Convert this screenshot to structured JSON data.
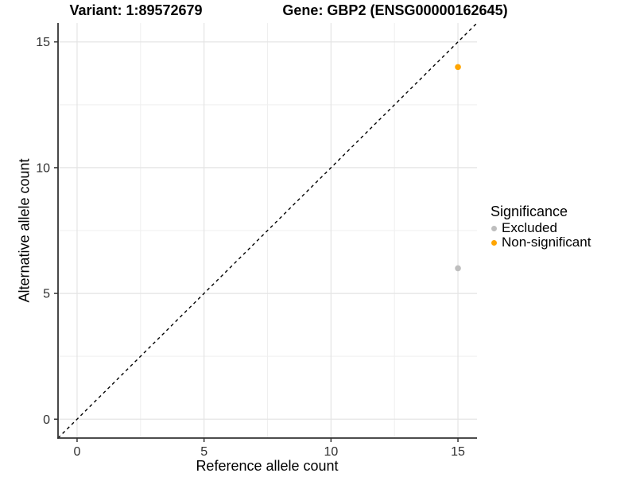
{
  "chart_data": {
    "type": "scatter",
    "title_variant": "Variant: 1:89572679",
    "title_gene": "Gene: GBP2 (ENSG00000162645)",
    "xlabel": "Reference allele count",
    "ylabel": "Alternative allele count",
    "xlim": [
      -0.75,
      15.75
    ],
    "ylim": [
      -0.75,
      15.75
    ],
    "x_ticks": [
      0,
      5,
      10,
      15
    ],
    "y_ticks": [
      0,
      5,
      10,
      15
    ],
    "x_minor_ticks": [
      2.5,
      7.5,
      12.5
    ],
    "y_minor_ticks": [
      2.5,
      7.5,
      12.5
    ],
    "grid": "major-and-minor",
    "reference_line": {
      "type": "identity",
      "slope": 1,
      "intercept": 0,
      "style": "dashed",
      "color": "#000000"
    },
    "legend": {
      "title": "Significance",
      "position": "right"
    },
    "series": [
      {
        "name": "Excluded",
        "color": "#BEBEBE",
        "points": [
          {
            "x": 15,
            "y": 6
          }
        ]
      },
      {
        "name": "Non-significant",
        "color": "#FFA500",
        "points": [
          {
            "x": 15,
            "y": 14
          }
        ]
      }
    ]
  }
}
